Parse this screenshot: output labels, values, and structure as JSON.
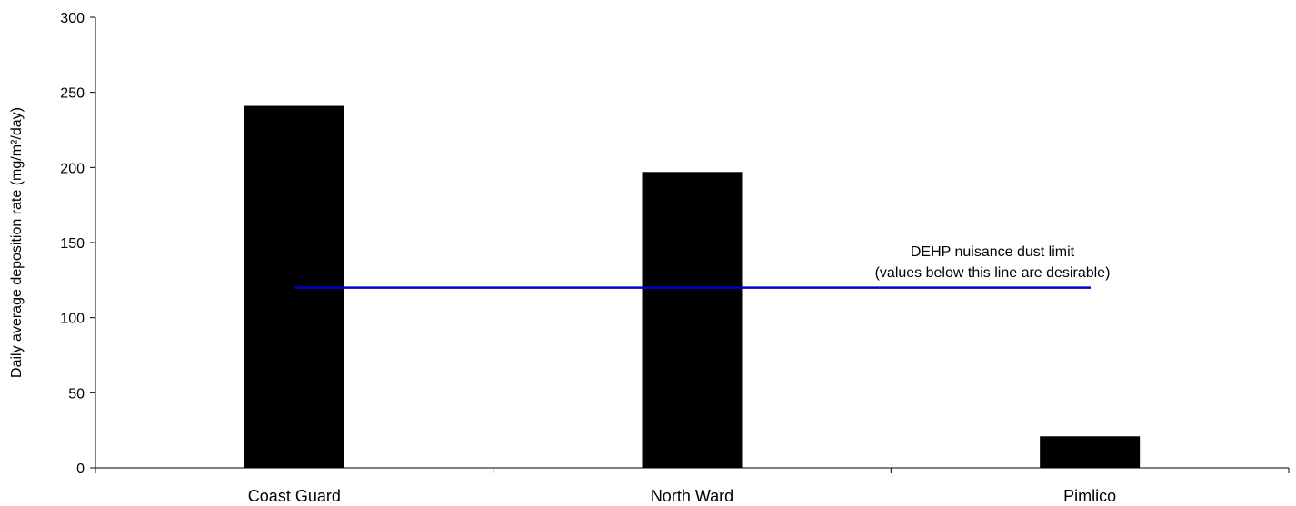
{
  "chart_data": {
    "type": "bar",
    "categories": [
      "Coast Guard",
      "North Ward",
      "Pimlico"
    ],
    "values": [
      241,
      197,
      21
    ],
    "ylabel": "Daily average deposition rate (mg/m²/day)",
    "ylim": [
      0,
      300
    ],
    "yticks": [
      0,
      50,
      100,
      150,
      200,
      250,
      300
    ],
    "grid": false,
    "bar_color": "#000000",
    "reference_line": {
      "value": 120,
      "color": "#0000cc",
      "label_line1": "DEHP nuisance dust limit",
      "label_line2": "(values below this line are desirable)"
    }
  }
}
